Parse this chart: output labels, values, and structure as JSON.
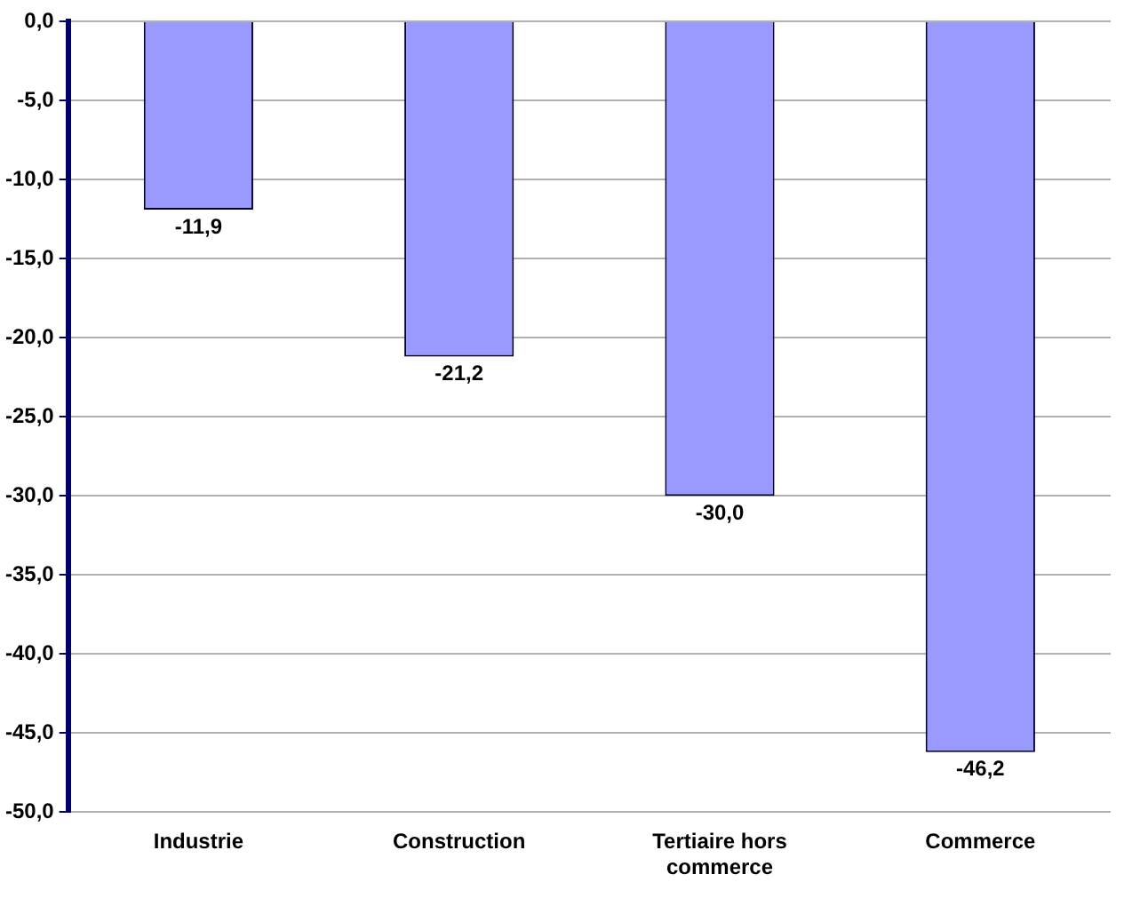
{
  "chart_data": {
    "type": "bar",
    "categories": [
      "Industrie",
      "Construction",
      "Tertiaire hors commerce",
      "Commerce"
    ],
    "values": [
      -11.9,
      -21.2,
      -30.0,
      -46.2
    ],
    "color": "#9999ff",
    "value_labels": [
      "-11,9",
      "-21,2",
      "-30,0",
      "-46,2"
    ],
    "ylim": [
      -50,
      0
    ],
    "yticks": [
      {
        "value": 0,
        "label": "0,0"
      },
      {
        "value": -5,
        "label": "-5,0"
      },
      {
        "value": -10,
        "label": "-10,0"
      },
      {
        "value": -15,
        "label": "-15,0"
      },
      {
        "value": -20,
        "label": "-20,0"
      },
      {
        "value": -25,
        "label": "-25,0"
      },
      {
        "value": -30,
        "label": "-30,0"
      },
      {
        "value": -35,
        "label": "-35,0"
      },
      {
        "value": -40,
        "label": "-40,0"
      },
      {
        "value": -45,
        "label": "-45,0"
      },
      {
        "value": -50,
        "label": "-50,0"
      }
    ],
    "grid": "y",
    "legend": false
  }
}
